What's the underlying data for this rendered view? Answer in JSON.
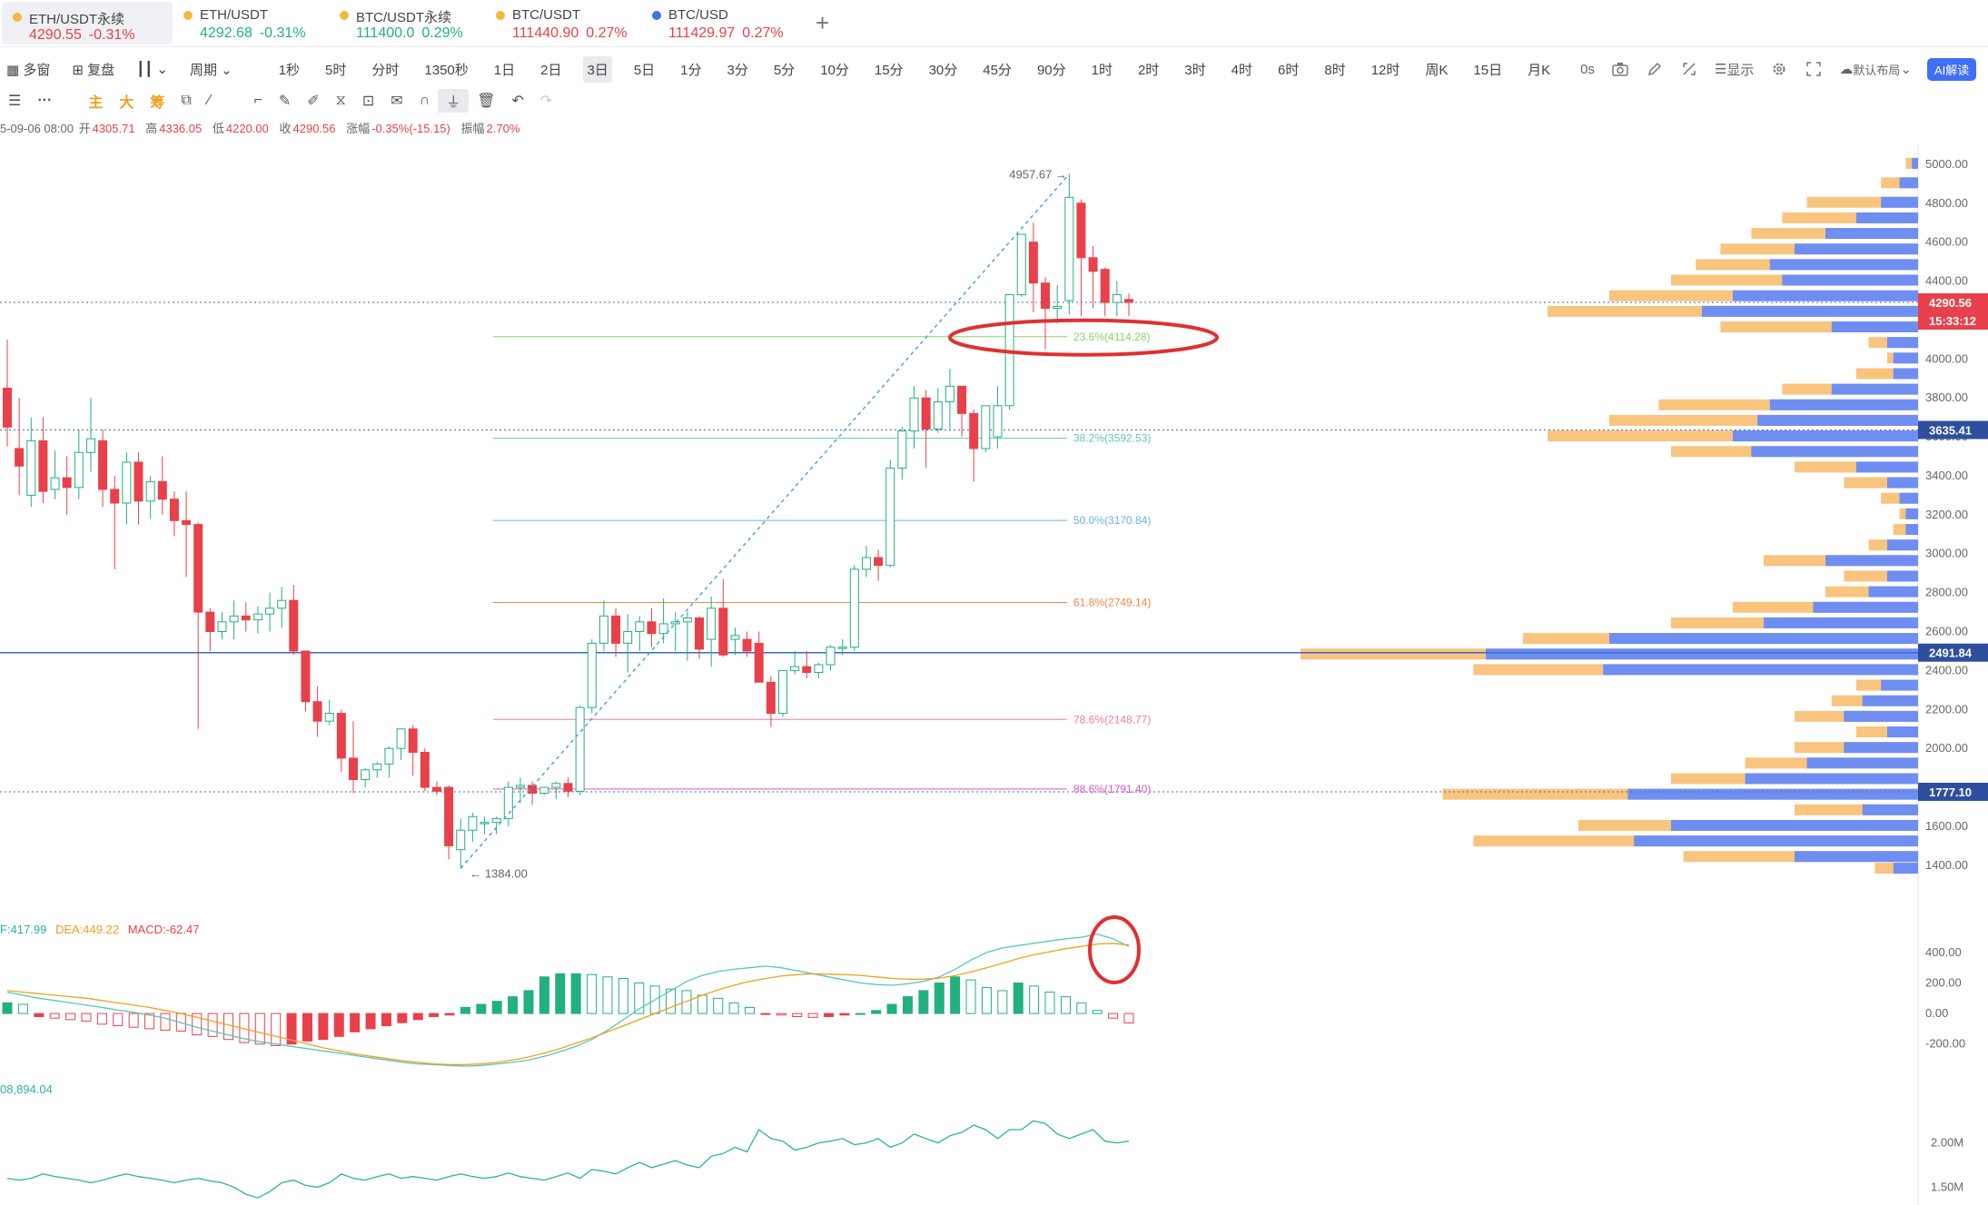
{
  "tickers": [
    {
      "name": "ETH/USDT永续",
      "price": "4290.55",
      "change": "-0.31%",
      "dir": "down",
      "dot_color": "#f3b93c"
    },
    {
      "name": "ETH/USDT",
      "price": "4292.68",
      "change": "-0.31%",
      "dir": "up",
      "dot_color": "#f3b93c"
    },
    {
      "name": "BTC/USDT永续",
      "price": "111400.0",
      "change": "0.29%",
      "dir": "up",
      "dot_color": "#f3b93c"
    },
    {
      "name": "BTC/USDT",
      "price": "111440.90",
      "change": "0.27%",
      "dir": "down",
      "dot_color": "#f3b93c"
    },
    {
      "name": "BTC/USD",
      "price": "111429.97",
      "change": "0.27%",
      "dir": "down",
      "dot_color": "#3f6ff5"
    }
  ],
  "add_tab_label": "+",
  "period_bar": {
    "multi_label": "多窗",
    "replay_label": "复盘",
    "cycle_label": "周期",
    "periods": [
      "1秒",
      "5时",
      "分时",
      "1350秒",
      "1日",
      "2日",
      "3日",
      "5日",
      "1分",
      "3分",
      "5分",
      "10分",
      "15分",
      "30分",
      "45分",
      "90分",
      "1时",
      "2时",
      "3时",
      "4时",
      "6时",
      "8时",
      "12时",
      "周K",
      "15日",
      "月K"
    ],
    "active_period": "3日",
    "zero_label": "0s",
    "display_label": "显示",
    "layout_label": "默认布局",
    "ai_label": "AI解读"
  },
  "tool_bar": {
    "labels": [
      "主",
      "大",
      "筹"
    ]
  },
  "ohlc": {
    "date": "5-09-06 08:00",
    "open_label": "开",
    "open": "4305.71",
    "high_label": "高",
    "high": "4336.05",
    "low_label": "低",
    "low": "4220.00",
    "close_label": "收",
    "close": "4290.56",
    "change_label": "涨幅",
    "change": "-0.35%(-15.15)",
    "amp_label": "振幅",
    "amp": "2.70%"
  },
  "chart_data": {
    "type": "candlestick",
    "price_axis": {
      "ticks": [
        "5000.00",
        "4800.00",
        "4600.00",
        "4400.00",
        "4200.00",
        "4000.00",
        "3800.00",
        "3600.00",
        "3400.00",
        "3200.00",
        "3000.00",
        "2800.00",
        "2600.00",
        "2400.00",
        "2200.00",
        "2000.00",
        "1800.00",
        "1600.00",
        "1400.00"
      ],
      "range": [
        1320,
        5060
      ]
    },
    "current_price": {
      "label": "4290.56",
      "countdown": "15:33:12",
      "value": 4290.56
    },
    "price_tags": [
      {
        "label": "3635.41",
        "value": 3635.41
      },
      {
        "label": "2491.84",
        "value": 2491.84
      },
      {
        "label": "1777.10",
        "value": 1777.1
      }
    ],
    "high_label": "4957.67",
    "low_label": "1384.00",
    "fib_levels": [
      {
        "label": "23.6%(4114.28)",
        "value": 4114.28,
        "color": "#8fcf6a"
      },
      {
        "label": "38.2%(3592.53)",
        "value": 3592.53,
        "color": "#5fc8b8"
      },
      {
        "label": "50.0%(3170.84)",
        "value": 3170.84,
        "color": "#6ab0e8"
      },
      {
        "label": "61.8%(2749.14)",
        "value": 2749.14,
        "color": "#f0884a"
      },
      {
        "label": "78.6%(2148.77)",
        "value": 2148.77,
        "color": "#f07aa8"
      },
      {
        "label": "88.6%(1791.40)",
        "value": 1791.4,
        "color": "#d45ac8"
      }
    ],
    "candles": [
      [
        3850,
        4100,
        3650,
        3550
      ],
      [
        3540,
        3800,
        3450,
        3300
      ],
      [
        3300,
        3700,
        3580,
        3240
      ],
      [
        3580,
        3700,
        3320,
        3260
      ],
      [
        3330,
        3530,
        3390,
        3280
      ],
      [
        3390,
        3500,
        3340,
        3200
      ],
      [
        3340,
        3640,
        3520,
        3280
      ],
      [
        3520,
        3800,
        3590,
        3420
      ],
      [
        3580,
        3640,
        3330,
        3240
      ],
      [
        3330,
        3400,
        3260,
        2920
      ],
      [
        3260,
        3520,
        3470,
        3150
      ],
      [
        3470,
        3520,
        3270,
        3150
      ],
      [
        3270,
        3400,
        3370,
        3180
      ],
      [
        3370,
        3500,
        3280,
        3200
      ],
      [
        3280,
        3320,
        3170,
        3090
      ],
      [
        3170,
        3320,
        3150,
        2880
      ],
      [
        3150,
        3160,
        2700,
        2100
      ],
      [
        2700,
        2720,
        2600,
        2500
      ],
      [
        2600,
        2700,
        2650,
        2560
      ],
      [
        2650,
        2760,
        2680,
        2560
      ],
      [
        2680,
        2750,
        2660,
        2600
      ],
      [
        2660,
        2730,
        2690,
        2590
      ],
      [
        2690,
        2800,
        2720,
        2600
      ],
      [
        2720,
        2830,
        2760,
        2620
      ],
      [
        2760,
        2840,
        2500,
        2480
      ],
      [
        2500,
        2500,
        2240,
        2190
      ],
      [
        2240,
        2320,
        2140,
        2060
      ],
      [
        2140,
        2250,
        2180,
        2120
      ],
      [
        2180,
        2200,
        1950,
        1880
      ],
      [
        1950,
        2140,
        1840,
        1770
      ],
      [
        1840,
        1900,
        1890,
        1800
      ],
      [
        1890,
        1930,
        1920,
        1850
      ],
      [
        1920,
        2010,
        2000,
        1850
      ],
      [
        2000,
        2100,
        2100,
        1940
      ],
      [
        2100,
        2120,
        1980,
        1860
      ],
      [
        1980,
        2000,
        1800,
        1780
      ],
      [
        1800,
        1830,
        1780,
        1760
      ],
      [
        1800,
        1810,
        1500,
        1430
      ],
      [
        1480,
        1640,
        1580,
        1384
      ],
      [
        1580,
        1670,
        1650,
        1520
      ],
      [
        1620,
        1650,
        1620,
        1560
      ],
      [
        1620,
        1650,
        1640,
        1560
      ],
      [
        1640,
        1830,
        1800,
        1600
      ],
      [
        1800,
        1850,
        1810,
        1720
      ],
      [
        1810,
        1830,
        1770,
        1710
      ],
      [
        1770,
        1800,
        1800,
        1760
      ],
      [
        1800,
        1830,
        1820,
        1740
      ],
      [
        1820,
        1850,
        1780,
        1750
      ],
      [
        1780,
        2220,
        2210,
        1760
      ],
      [
        2210,
        2560,
        2540,
        2180
      ],
      [
        2540,
        2760,
        2680,
        2500
      ],
      [
        2680,
        2720,
        2540,
        2470
      ],
      [
        2540,
        2690,
        2600,
        2390
      ],
      [
        2600,
        2680,
        2650,
        2500
      ],
      [
        2650,
        2720,
        2590,
        2520
      ],
      [
        2590,
        2770,
        2640,
        2540
      ],
      [
        2640,
        2700,
        2650,
        2500
      ],
      [
        2650,
        2700,
        2670,
        2450
      ],
      [
        2670,
        2680,
        2510,
        2460
      ],
      [
        2560,
        2780,
        2720,
        2420
      ],
      [
        2720,
        2870,
        2480,
        2470
      ],
      [
        2560,
        2620,
        2580,
        2480
      ],
      [
        2560,
        2600,
        2500,
        2470
      ],
      [
        2540,
        2600,
        2340,
        2340
      ],
      [
        2340,
        2370,
        2180,
        2110
      ],
      [
        2180,
        2400,
        2400,
        2160
      ],
      [
        2400,
        2500,
        2420,
        2380
      ],
      [
        2420,
        2500,
        2390,
        2360
      ],
      [
        2390,
        2440,
        2430,
        2360
      ],
      [
        2430,
        2530,
        2520,
        2400
      ],
      [
        2520,
        2560,
        2520,
        2480
      ],
      [
        2520,
        2940,
        2920,
        2500
      ],
      [
        2920,
        3040,
        2980,
        2880
      ],
      [
        2980,
        3020,
        2940,
        2860
      ],
      [
        2940,
        3480,
        3440,
        2930
      ],
      [
        3440,
        3650,
        3630,
        3380
      ],
      [
        3630,
        3860,
        3800,
        3540
      ],
      [
        3800,
        3840,
        3640,
        3440
      ],
      [
        3640,
        3850,
        3780,
        3620
      ],
      [
        3780,
        3950,
        3860,
        3640
      ],
      [
        3860,
        3860,
        3720,
        3600
      ],
      [
        3720,
        3740,
        3540,
        3370
      ],
      [
        3540,
        3750,
        3760,
        3520
      ],
      [
        3600,
        3860,
        3760,
        3540
      ],
      [
        3760,
        4250,
        4330,
        3740
      ],
      [
        4330,
        4400,
        4640,
        4320
      ],
      [
        4600,
        4700,
        4390,
        4240
      ],
      [
        4390,
        4420,
        4260,
        4050
      ],
      [
        4260,
        4380,
        4270,
        4180
      ],
      [
        4300,
        4950,
        4830,
        4230
      ],
      [
        4800,
        4820,
        4520,
        4220
      ],
      [
        4520,
        4580,
        4450,
        4260
      ],
      [
        4460,
        4470,
        4290,
        4220
      ],
      [
        4290,
        4400,
        4330,
        4220
      ],
      [
        4305.71,
        4336.05,
        4290.56,
        4220
      ]
    ],
    "volume_profile": [
      {
        "p": 5000,
        "a": 0.02,
        "b": 0.01
      },
      {
        "p": 4900,
        "a": 0.06,
        "b": 0.03
      },
      {
        "p": 4800,
        "a": 0.18,
        "b": 0.06
      },
      {
        "p": 4720,
        "a": 0.22,
        "b": 0.1
      },
      {
        "p": 4640,
        "a": 0.27,
        "b": 0.15
      },
      {
        "p": 4560,
        "a": 0.32,
        "b": 0.2
      },
      {
        "p": 4480,
        "a": 0.36,
        "b": 0.24
      },
      {
        "p": 4400,
        "a": 0.4,
        "b": 0.22
      },
      {
        "p": 4320,
        "a": 0.5,
        "b": 0.3
      },
      {
        "p": 4240,
        "a": 0.6,
        "b": 0.35
      },
      {
        "p": 4160,
        "a": 0.32,
        "b": 0.14
      },
      {
        "p": 4080,
        "a": 0.08,
        "b": 0.05
      },
      {
        "p": 4000,
        "a": 0.05,
        "b": 0.04
      },
      {
        "p": 3920,
        "a": 0.1,
        "b": 0.04
      },
      {
        "p": 3840,
        "a": 0.22,
        "b": 0.14
      },
      {
        "p": 3760,
        "a": 0.42,
        "b": 0.24
      },
      {
        "p": 3680,
        "a": 0.5,
        "b": 0.26
      },
      {
        "p": 3600,
        "a": 0.6,
        "b": 0.3
      },
      {
        "p": 3520,
        "a": 0.4,
        "b": 0.27
      },
      {
        "p": 3440,
        "a": 0.2,
        "b": 0.1
      },
      {
        "p": 3360,
        "a": 0.12,
        "b": 0.05
      },
      {
        "p": 3280,
        "a": 0.06,
        "b": 0.03
      },
      {
        "p": 3200,
        "a": 0.03,
        "b": 0.02
      },
      {
        "p": 3120,
        "a": 0.04,
        "b": 0.02
      },
      {
        "p": 3040,
        "a": 0.08,
        "b": 0.05
      },
      {
        "p": 2960,
        "a": 0.25,
        "b": 0.15
      },
      {
        "p": 2880,
        "a": 0.12,
        "b": 0.05
      },
      {
        "p": 2800,
        "a": 0.15,
        "b": 0.08
      },
      {
        "p": 2720,
        "a": 0.3,
        "b": 0.17
      },
      {
        "p": 2640,
        "a": 0.4,
        "b": 0.25
      },
      {
        "p": 2560,
        "a": 0.64,
        "b": 0.5
      },
      {
        "p": 2480,
        "a": 1.0,
        "b": 0.7
      },
      {
        "p": 2400,
        "a": 0.72,
        "b": 0.51
      },
      {
        "p": 2320,
        "a": 0.1,
        "b": 0.06
      },
      {
        "p": 2240,
        "a": 0.14,
        "b": 0.09
      },
      {
        "p": 2160,
        "a": 0.2,
        "b": 0.12
      },
      {
        "p": 2080,
        "a": 0.1,
        "b": 0.05
      },
      {
        "p": 2000,
        "a": 0.2,
        "b": 0.12
      },
      {
        "p": 1920,
        "a": 0.28,
        "b": 0.18
      },
      {
        "p": 1840,
        "a": 0.4,
        "b": 0.28
      },
      {
        "p": 1760,
        "a": 0.77,
        "b": 0.47
      },
      {
        "p": 1680,
        "a": 0.2,
        "b": 0.09
      },
      {
        "p": 1600,
        "a": 0.55,
        "b": 0.4
      },
      {
        "p": 1520,
        "a": 0.72,
        "b": 0.46
      },
      {
        "p": 1440,
        "a": 0.38,
        "b": 0.2
      },
      {
        "p": 1380,
        "a": 0.07,
        "b": 0.04
      }
    ],
    "macd": {
      "legend": {
        "dif_label": "F:417.99",
        "dea_label": "DEA:449.22",
        "macd_label": "MACD:-62.47"
      },
      "axis_ticks": [
        "400.00",
        "200.00",
        "0.00",
        "-200.00"
      ],
      "range": [
        -380,
        560
      ],
      "dif": [
        140,
        120,
        100,
        85,
        70,
        55,
        40,
        22,
        8,
        -10,
        -30,
        -60,
        -90,
        -115,
        -140,
        -165,
        -185,
        -200,
        -215,
        -230,
        -245,
        -260,
        -275,
        -290,
        -305,
        -320,
        -330,
        -335,
        -340,
        -345,
        -340,
        -330,
        -320,
        -305,
        -280,
        -250,
        -215,
        -170,
        -110,
        -40,
        30,
        90,
        150,
        210,
        250,
        275,
        290,
        300,
        310,
        300,
        280,
        260,
        240,
        220,
        200,
        190,
        185,
        195,
        210,
        240,
        290,
        350,
        400,
        430,
        445,
        460,
        475,
        490,
        500,
        520,
        490,
        440
      ],
      "dea": [
        150,
        140,
        130,
        120,
        110,
        100,
        85,
        70,
        55,
        40,
        20,
        0,
        -25,
        -50,
        -75,
        -100,
        -125,
        -150,
        -175,
        -200,
        -225,
        -245,
        -265,
        -280,
        -295,
        -310,
        -320,
        -330,
        -335,
        -335,
        -330,
        -320,
        -305,
        -285,
        -260,
        -230,
        -195,
        -160,
        -120,
        -80,
        -40,
        0,
        40,
        80,
        120,
        155,
        185,
        210,
        230,
        245,
        255,
        260,
        258,
        255,
        250,
        240,
        230,
        225,
        225,
        232,
        248,
        272,
        300,
        330,
        360,
        385,
        405,
        425,
        440,
        455,
        460,
        449
      ],
      "hist": [
        70,
        60,
        -20,
        -30,
        -40,
        -50,
        -70,
        -80,
        -90,
        -100,
        -110,
        -115,
        -140,
        -150,
        -170,
        -190,
        -200,
        -210,
        -200,
        -180,
        -170,
        -150,
        -120,
        -100,
        -80,
        -60,
        -40,
        -20,
        -10,
        40,
        60,
        80,
        110,
        150,
        240,
        260,
        260,
        255,
        240,
        230,
        200,
        180,
        160,
        150,
        120,
        100,
        70,
        40,
        -5,
        -10,
        -20,
        -25,
        -20,
        -10,
        0,
        20,
        60,
        110,
        150,
        200,
        240,
        220,
        170,
        150,
        200,
        180,
        140,
        110,
        70,
        20,
        -30,
        -62
      ]
    },
    "volume_line": {
      "legend": "08,894.04",
      "axis_ticks": [
        "2.00M",
        "1.50M"
      ],
      "range": [
        1.35,
        2.55
      ],
      "values": [
        1.6,
        1.58,
        1.6,
        1.65,
        1.62,
        1.6,
        1.58,
        1.55,
        1.58,
        1.62,
        1.65,
        1.62,
        1.6,
        1.58,
        1.55,
        1.58,
        1.6,
        1.57,
        1.55,
        1.5,
        1.42,
        1.38,
        1.45,
        1.55,
        1.58,
        1.52,
        1.5,
        1.55,
        1.65,
        1.6,
        1.58,
        1.62,
        1.65,
        1.6,
        1.62,
        1.6,
        1.58,
        1.62,
        1.65,
        1.62,
        1.6,
        1.62,
        1.66,
        1.62,
        1.6,
        1.58,
        1.62,
        1.66,
        1.6,
        1.7,
        1.68,
        1.65,
        1.72,
        1.78,
        1.72,
        1.76,
        1.8,
        1.75,
        1.72,
        1.85,
        1.88,
        1.95,
        1.9,
        2.15,
        2.05,
        2.02,
        1.92,
        1.95,
        2.0,
        2.02,
        2.05,
        1.98,
        2.0,
        2.05,
        1.95,
        2.0,
        2.1,
        2.05,
        2.0,
        2.08,
        2.12,
        2.2,
        2.15,
        2.05,
        2.15,
        2.15,
        2.25,
        2.22,
        2.1,
        2.05,
        2.1,
        2.15,
        2.02,
        2.0,
        2.02
      ]
    }
  }
}
